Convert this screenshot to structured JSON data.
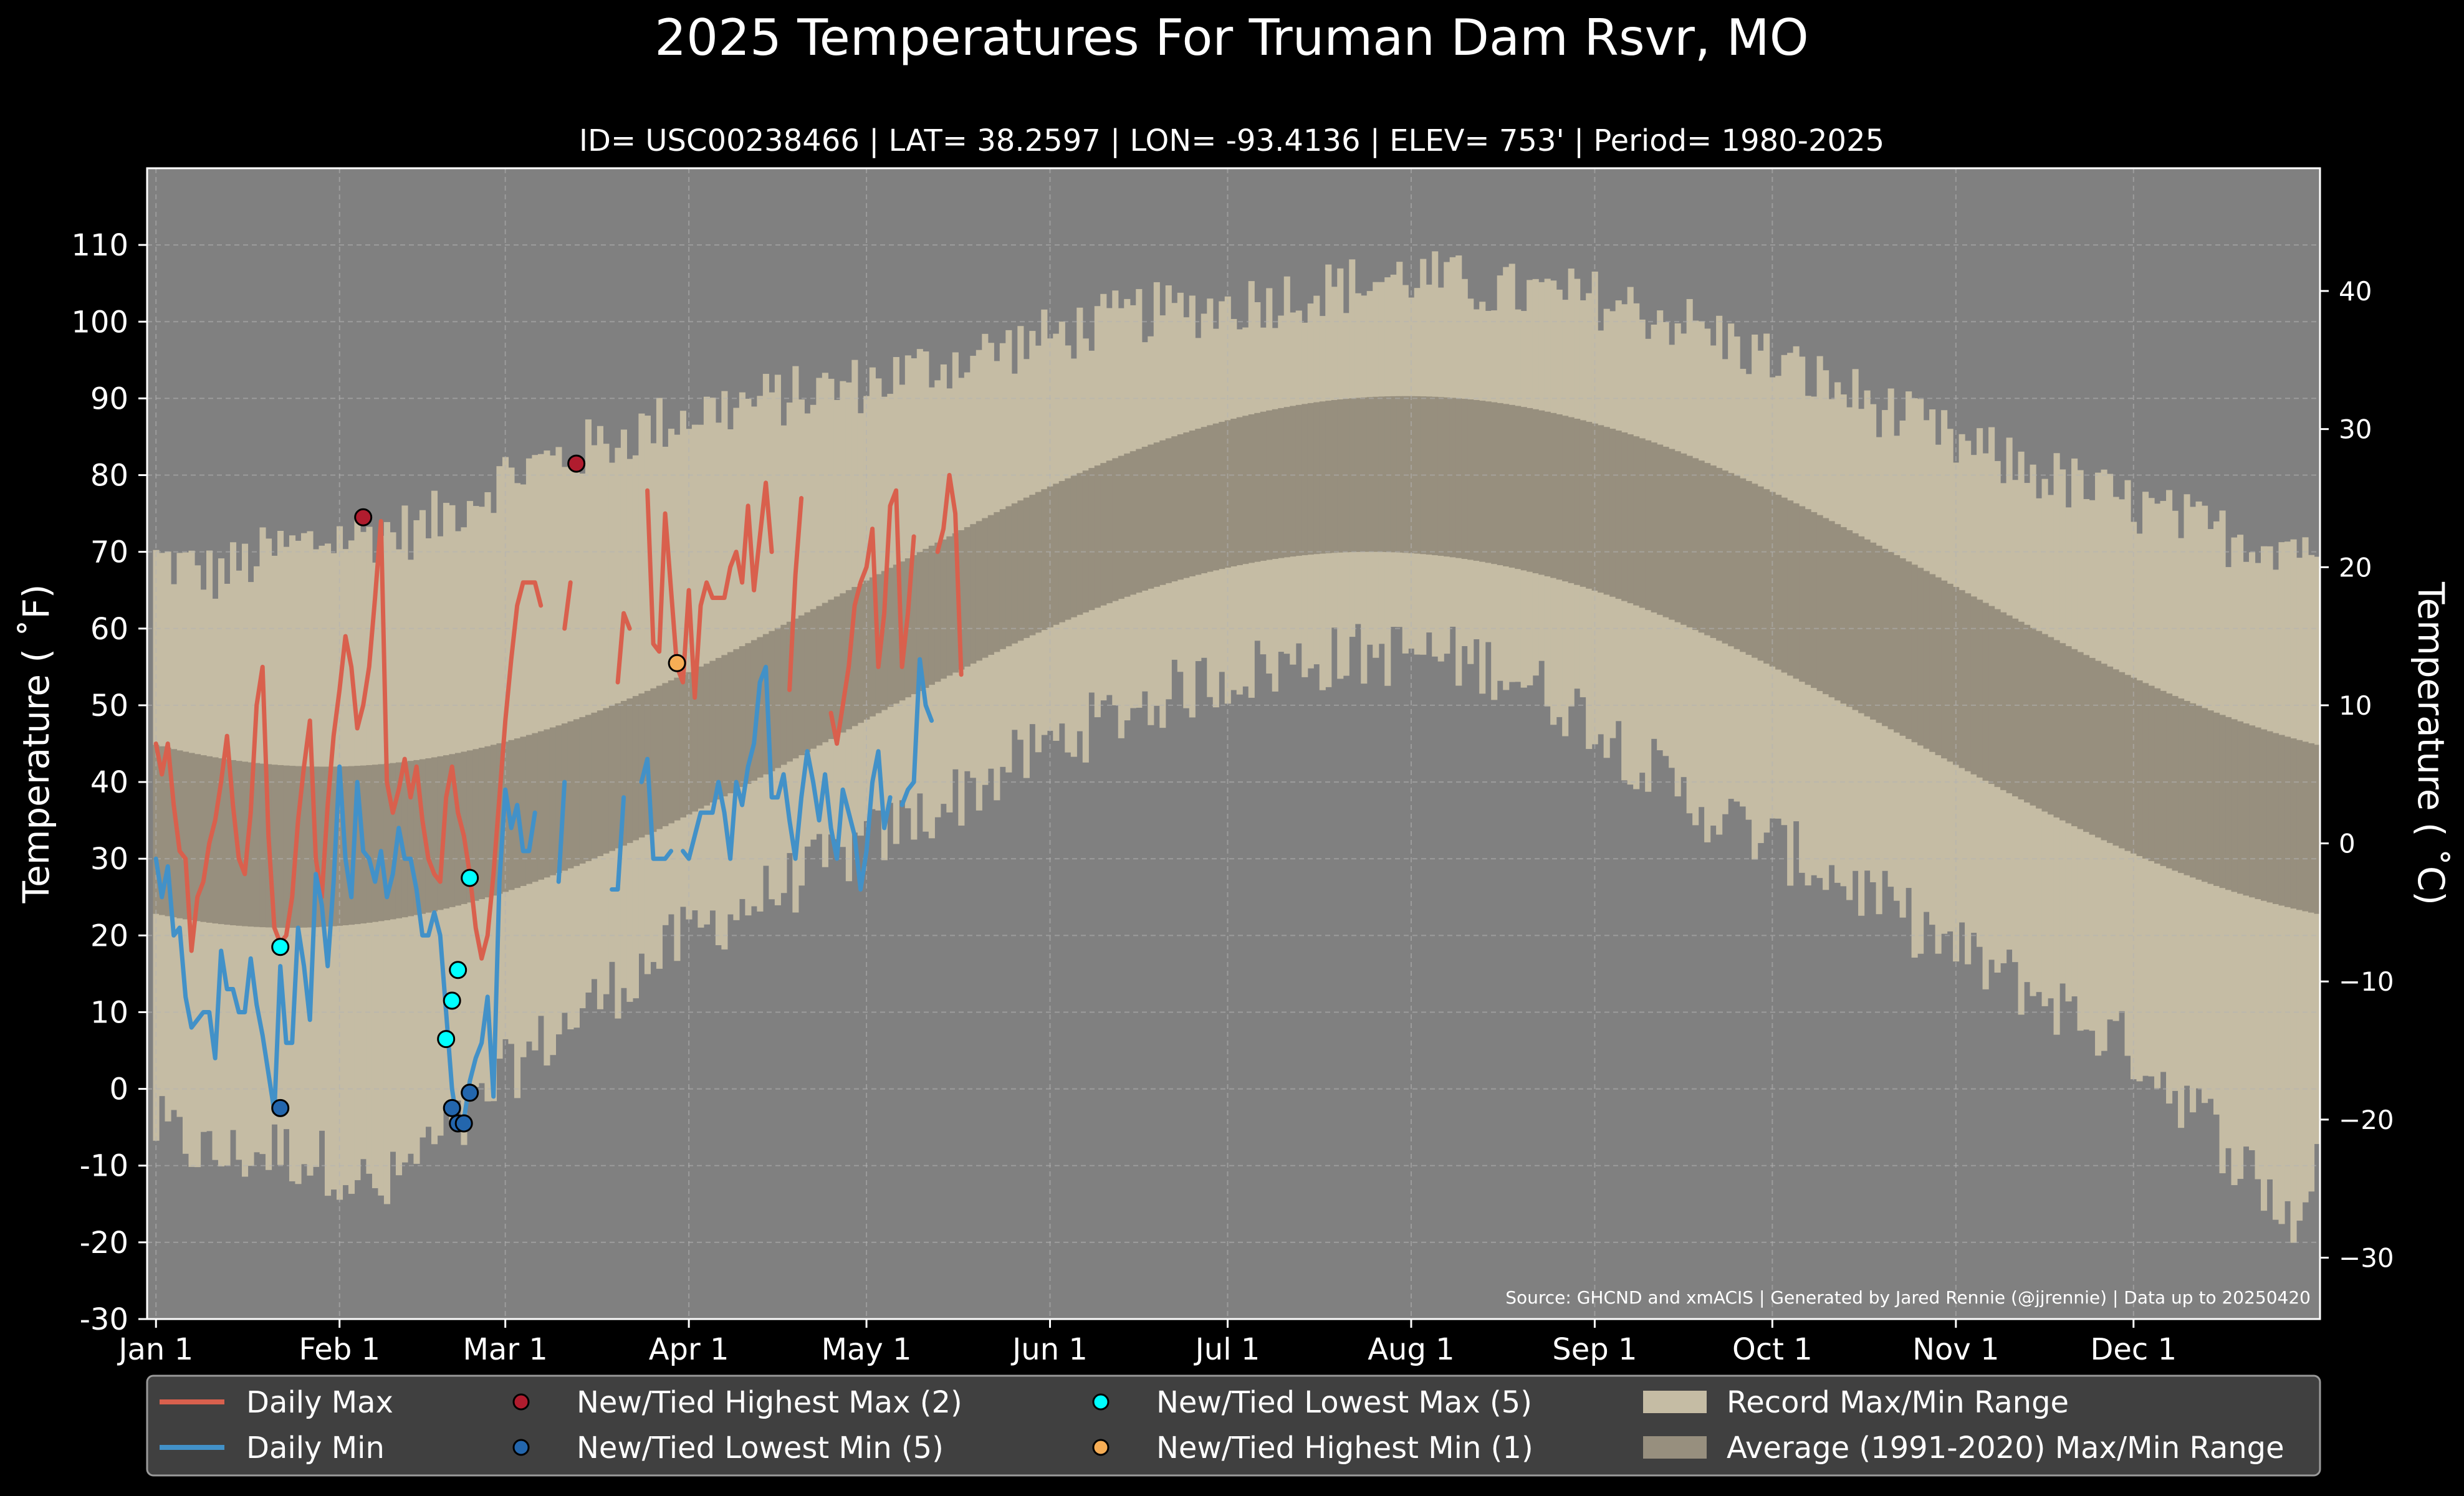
{
  "chart_data": {
    "type": "line",
    "title": "2025 Temperatures For Truman Dam Rsvr, MO",
    "subtitle": "ID= USC00238466 | LAT= 38.2597 | LON= -93.4136 | ELEV= 753' | Period= 1980-2025",
    "ylabel_left": "Temperature ( ˚F)",
    "ylabel_right": "Temperature ( ˚C)",
    "source": "Source: GHCND and xmACIS | Generated by Jared Rennie (@jjrennie) | Data up to 20250420",
    "ylim_f": [
      -30,
      120
    ],
    "xlim_day": [
      -1.5,
      365.5
    ],
    "grid": true,
    "legend_placement": "bottom",
    "x_ticks": [
      {
        "day": 0,
        "label": "Jan 1"
      },
      {
        "day": 31,
        "label": "Feb 1"
      },
      {
        "day": 59,
        "label": "Mar 1"
      },
      {
        "day": 90,
        "label": "Apr 1"
      },
      {
        "day": 120,
        "label": "May 1"
      },
      {
        "day": 151,
        "label": "Jun 1"
      },
      {
        "day": 181,
        "label": "Jul 1"
      },
      {
        "day": 212,
        "label": "Aug 1"
      },
      {
        "day": 243,
        "label": "Sep 1"
      },
      {
        "day": 273,
        "label": "Oct 1"
      },
      {
        "day": 304,
        "label": "Nov 1"
      },
      {
        "day": 334,
        "label": "Dec 1"
      }
    ],
    "y_ticks_f": [
      -30,
      -20,
      -10,
      0,
      10,
      20,
      30,
      40,
      50,
      60,
      70,
      80,
      90,
      100,
      110
    ],
    "y_ticks_c": [
      -30,
      -20,
      -10,
      0,
      10,
      20,
      30,
      40
    ],
    "colors": {
      "background": "#000000",
      "plot_bg": "#808080",
      "record_range": "#c5bca4",
      "normal_range": "#978f7e",
      "daily_max": "#d9604d",
      "daily_min": "#4291c8",
      "highest_max": "#b01c2e",
      "lowest_min": "#2366ad",
      "lowest_max": "#00ffff",
      "highest_min": "#f6ad55",
      "grid": "#b3b3b3",
      "legend_bg": "#404040"
    },
    "record_max_anchors": [
      [
        0,
        69
      ],
      [
        10,
        67
      ],
      [
        20,
        70
      ],
      [
        31,
        72
      ],
      [
        45,
        73
      ],
      [
        59,
        80
      ],
      [
        75,
        84
      ],
      [
        90,
        88
      ],
      [
        105,
        90
      ],
      [
        120,
        92
      ],
      [
        135,
        95
      ],
      [
        151,
        98
      ],
      [
        166,
        101
      ],
      [
        181,
        102
      ],
      [
        196,
        104
      ],
      [
        212,
        106
      ],
      [
        227,
        104
      ],
      [
        243,
        103
      ],
      [
        258,
        100
      ],
      [
        273,
        95
      ],
      [
        288,
        90
      ],
      [
        304,
        84
      ],
      [
        319,
        80
      ],
      [
        334,
        76
      ],
      [
        350,
        72
      ],
      [
        365,
        71
      ]
    ],
    "record_min_anchors": [
      [
        0,
        -5
      ],
      [
        10,
        -9
      ],
      [
        20,
        -8
      ],
      [
        31,
        -10
      ],
      [
        38,
        -14
      ],
      [
        45,
        -8
      ],
      [
        52,
        -5
      ],
      [
        59,
        2
      ],
      [
        75,
        12
      ],
      [
        90,
        20
      ],
      [
        105,
        26
      ],
      [
        120,
        32
      ],
      [
        135,
        38
      ],
      [
        151,
        45
      ],
      [
        166,
        50
      ],
      [
        181,
        54
      ],
      [
        196,
        56
      ],
      [
        212,
        57
      ],
      [
        227,
        55
      ],
      [
        243,
        48
      ],
      [
        258,
        38
      ],
      [
        273,
        32
      ],
      [
        288,
        26
      ],
      [
        304,
        18
      ],
      [
        319,
        12
      ],
      [
        334,
        5
      ],
      [
        345,
        -3
      ],
      [
        355,
        -12
      ],
      [
        362,
        -18
      ],
      [
        365,
        -8
      ]
    ],
    "normal_max": {
      "min": 42.0,
      "max": 90.3,
      "peak_day": 211
    },
    "normal_min": {
      "min": 21.0,
      "max": 70.0,
      "peak_day": 205
    },
    "series": [
      {
        "name": "Daily Max",
        "start_day": 0,
        "values": [
          45,
          41,
          45,
          37,
          31,
          30,
          18,
          25,
          27,
          32,
          35,
          40,
          46,
          37,
          30,
          28,
          36,
          50,
          55,
          33,
          21,
          19,
          20,
          25,
          35,
          42,
          48,
          30,
          25,
          37,
          46,
          52,
          59,
          55,
          47,
          50,
          55,
          64,
          74,
          40,
          36,
          39,
          43,
          38,
          42,
          35,
          30,
          28,
          27,
          38,
          42,
          36,
          33,
          28,
          21,
          17,
          20,
          28,
          38,
          48,
          56,
          63,
          66,
          66,
          66,
          63,
          null,
          null,
          null,
          60,
          66,
          null,
          null,
          null,
          null,
          null,
          null,
          null,
          53,
          62,
          60,
          null,
          null,
          78,
          58,
          57,
          75,
          65,
          55,
          53,
          65,
          51,
          63,
          66,
          64,
          64,
          64,
          68,
          70,
          66,
          76,
          65,
          72,
          79,
          70,
          null,
          null,
          52,
          67,
          77,
          null,
          null,
          null,
          null,
          49,
          45,
          50,
          55,
          63,
          66,
          68,
          73,
          55,
          62,
          76,
          78,
          55,
          62,
          72,
          null,
          null,
          null,
          70,
          73,
          80,
          75,
          54
        ]
      },
      {
        "name": "Daily Min",
        "start_day": 0,
        "values": [
          30,
          25,
          29,
          20,
          21,
          12,
          8,
          9,
          10,
          10,
          4,
          18,
          13,
          13,
          10,
          10,
          17,
          11,
          7,
          2,
          -3,
          16,
          6,
          6,
          21,
          16,
          9,
          28,
          24,
          16,
          27,
          42,
          30,
          25,
          40,
          31,
          30,
          27,
          31,
          25,
          28,
          34,
          30,
          30,
          26,
          20,
          20,
          23,
          20,
          10,
          0,
          -5,
          -4,
          1,
          4,
          6,
          12,
          -1,
          27,
          39,
          34,
          37,
          31,
          31,
          36,
          null,
          null,
          null,
          27,
          40,
          null,
          null,
          null,
          null,
          null,
          null,
          null,
          26,
          26,
          38,
          null,
          null,
          40,
          43,
          30,
          30,
          30,
          31,
          null,
          31,
          30,
          33,
          36,
          36,
          36,
          40,
          36,
          30,
          40,
          37,
          42,
          45,
          53,
          55,
          38,
          38,
          41,
          35,
          30,
          38,
          44,
          40,
          35,
          41,
          34,
          30,
          39,
          36,
          33,
          26,
          31,
          40,
          44,
          34,
          38,
          null,
          37,
          39,
          40,
          56,
          50,
          48
        ]
      }
    ],
    "records": [
      {
        "name": "New/Tied Highest Max (2)",
        "points": [
          [
            35,
            74.5
          ],
          [
            71,
            81.5
          ]
        ]
      },
      {
        "name": "New/Tied Lowest Min (5)",
        "points": [
          [
            21,
            -2.5
          ],
          [
            50,
            -2.5
          ],
          [
            51,
            -4.5
          ],
          [
            52,
            -4.5
          ],
          [
            53,
            -0.5
          ]
        ]
      },
      {
        "name": "New/Tied Lowest Max (5)",
        "points": [
          [
            21,
            18.5
          ],
          [
            49,
            6.5
          ],
          [
            50,
            11.5
          ],
          [
            51,
            15.5
          ],
          [
            53,
            27.5
          ]
        ]
      },
      {
        "name": "New/Tied Highest Min (1)",
        "points": [
          [
            88,
            55.5
          ]
        ]
      }
    ],
    "legend": [
      {
        "label": "Daily Max",
        "kind": "line",
        "color": "#d9604d"
      },
      {
        "label": "Daily Min",
        "kind": "line",
        "color": "#4291c8"
      },
      {
        "label": "New/Tied Highest Max (2)",
        "kind": "dot",
        "color": "#b01c2e"
      },
      {
        "label": "New/Tied Lowest Min (5)",
        "kind": "dot",
        "color": "#2366ad"
      },
      {
        "label": "New/Tied Lowest Max (5)",
        "kind": "dot",
        "color": "#00ffff"
      },
      {
        "label": "New/Tied Highest Min (1)",
        "kind": "dot",
        "color": "#f6ad55"
      },
      {
        "label": "Record Max/Min Range",
        "kind": "patch",
        "color": "#c5bca4"
      },
      {
        "label": "Average (1991-2020) Max/Min Range",
        "kind": "patch",
        "color": "#978f7e"
      }
    ]
  }
}
